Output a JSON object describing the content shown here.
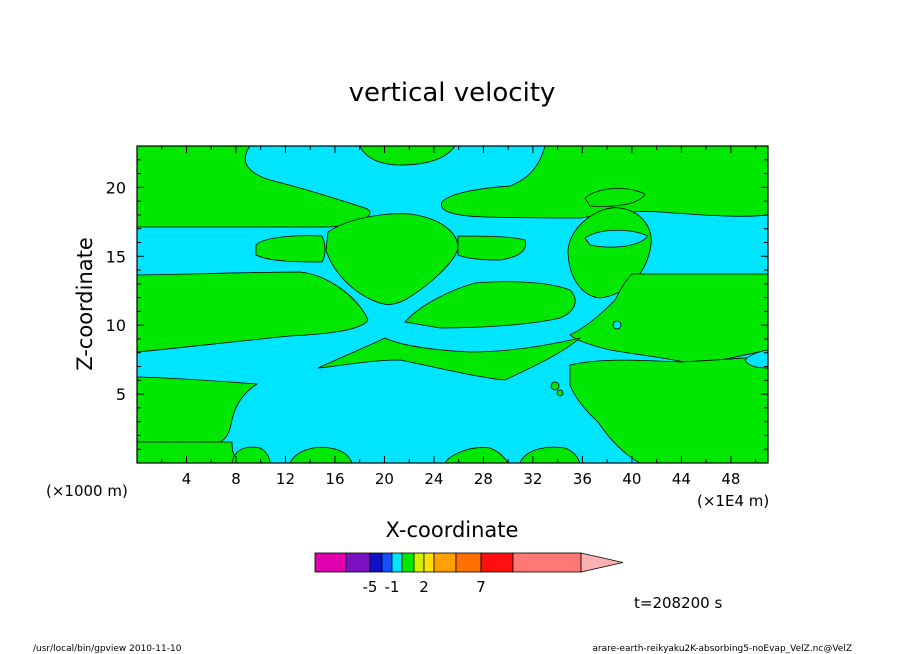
{
  "chart_data": {
    "type": "heatmap",
    "title": "vertical velocity",
    "xlabel": "X-coordinate",
    "ylabel": "Z-coordinate",
    "x_scale_note": "(×1000 m)",
    "x_unit_note": "(×1E4 m)",
    "xlim": [
      0,
      51
    ],
    "ylim": [
      0,
      23
    ],
    "x_ticks": [
      4,
      8,
      12,
      16,
      20,
      24,
      28,
      32,
      36,
      40,
      44,
      48
    ],
    "y_ticks": [
      5,
      10,
      15,
      20
    ],
    "field_colors": {
      "negative": "#00e5ff",
      "positive": "#00e800"
    },
    "colorbar": {
      "colors": [
        "#e000b0",
        "#7a10c0",
        "#1010c8",
        "#1050ff",
        "#00e5ff",
        "#00e800",
        "#d0f000",
        "#ffe000",
        "#ffa000",
        "#ff7000",
        "#ff1010",
        "#ff7878",
        "#ffb0b0"
      ],
      "tick_labels": [
        "-5",
        "-1",
        "2",
        "7"
      ]
    },
    "time_label": "t=208200 s",
    "footer_left": "/usr/local/bin/gpview  2010-11-10",
    "footer_right": "arare-earth-reikyaku2K-absorbing5-noEvap_VelZ.nc@VelZ"
  }
}
